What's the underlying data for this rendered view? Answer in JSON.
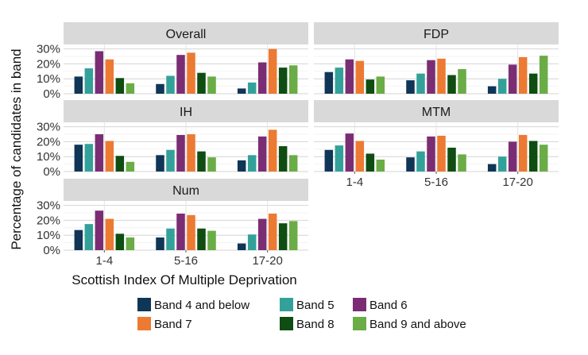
{
  "chart_data": {
    "type": "bar",
    "ylabel": "Percentage of candidates in band",
    "xlabel": "Scottish Index Of Multiple Deprivation",
    "categories": [
      "1-4",
      "5-16",
      "17-20"
    ],
    "y_ticks": [
      "0%",
      "10%",
      "20%",
      "30%"
    ],
    "ylim": [
      0,
      33
    ],
    "legend_position": "bottom",
    "series": [
      {
        "name": "Band 4 and below",
        "color": "#0f3557"
      },
      {
        "name": "Band 5",
        "color": "#33a19a"
      },
      {
        "name": "Band 6",
        "color": "#7b2d74"
      },
      {
        "name": "Band 7",
        "color": "#ec7a33"
      },
      {
        "name": "Band 8",
        "color": "#0f4d12"
      },
      {
        "name": "Band 9 and above",
        "color": "#6aac46"
      }
    ],
    "panels": [
      {
        "title": "Overall",
        "values": [
          [
            11.5,
            17,
            28.5,
            23,
            10.5,
            7
          ],
          [
            6.5,
            12,
            26,
            27.5,
            14,
            11.5
          ],
          [
            3.5,
            7.5,
            21,
            30,
            17.5,
            19
          ]
        ]
      },
      {
        "title": "FDP",
        "values": [
          [
            14.5,
            17.5,
            23,
            22,
            9.5,
            11.5
          ],
          [
            9,
            13.5,
            22.5,
            23.5,
            12.5,
            16.5
          ],
          [
            5,
            10,
            19.5,
            24.5,
            13.5,
            25.5
          ]
        ]
      },
      {
        "title": "IH",
        "values": [
          [
            18,
            18.5,
            25,
            20.5,
            10.5,
            6.5
          ],
          [
            11,
            14.5,
            24.5,
            25,
            13.5,
            9.5
          ],
          [
            7.5,
            11,
            23.5,
            28,
            17,
            11
          ]
        ]
      },
      {
        "title": "MTM",
        "values": [
          [
            14.5,
            17.5,
            25.5,
            20.5,
            12,
            8
          ],
          [
            9.5,
            13.5,
            23.5,
            24,
            16,
            11.5
          ],
          [
            5,
            10,
            20,
            24.5,
            20.5,
            18
          ]
        ]
      },
      {
        "title": "Num",
        "values": [
          [
            13.5,
            17.5,
            26.5,
            21,
            11,
            8.5
          ],
          [
            8.5,
            14.5,
            24.5,
            23.5,
            14.5,
            13
          ],
          [
            4.5,
            10.5,
            21,
            24.5,
            18,
            19.5
          ]
        ]
      }
    ]
  }
}
